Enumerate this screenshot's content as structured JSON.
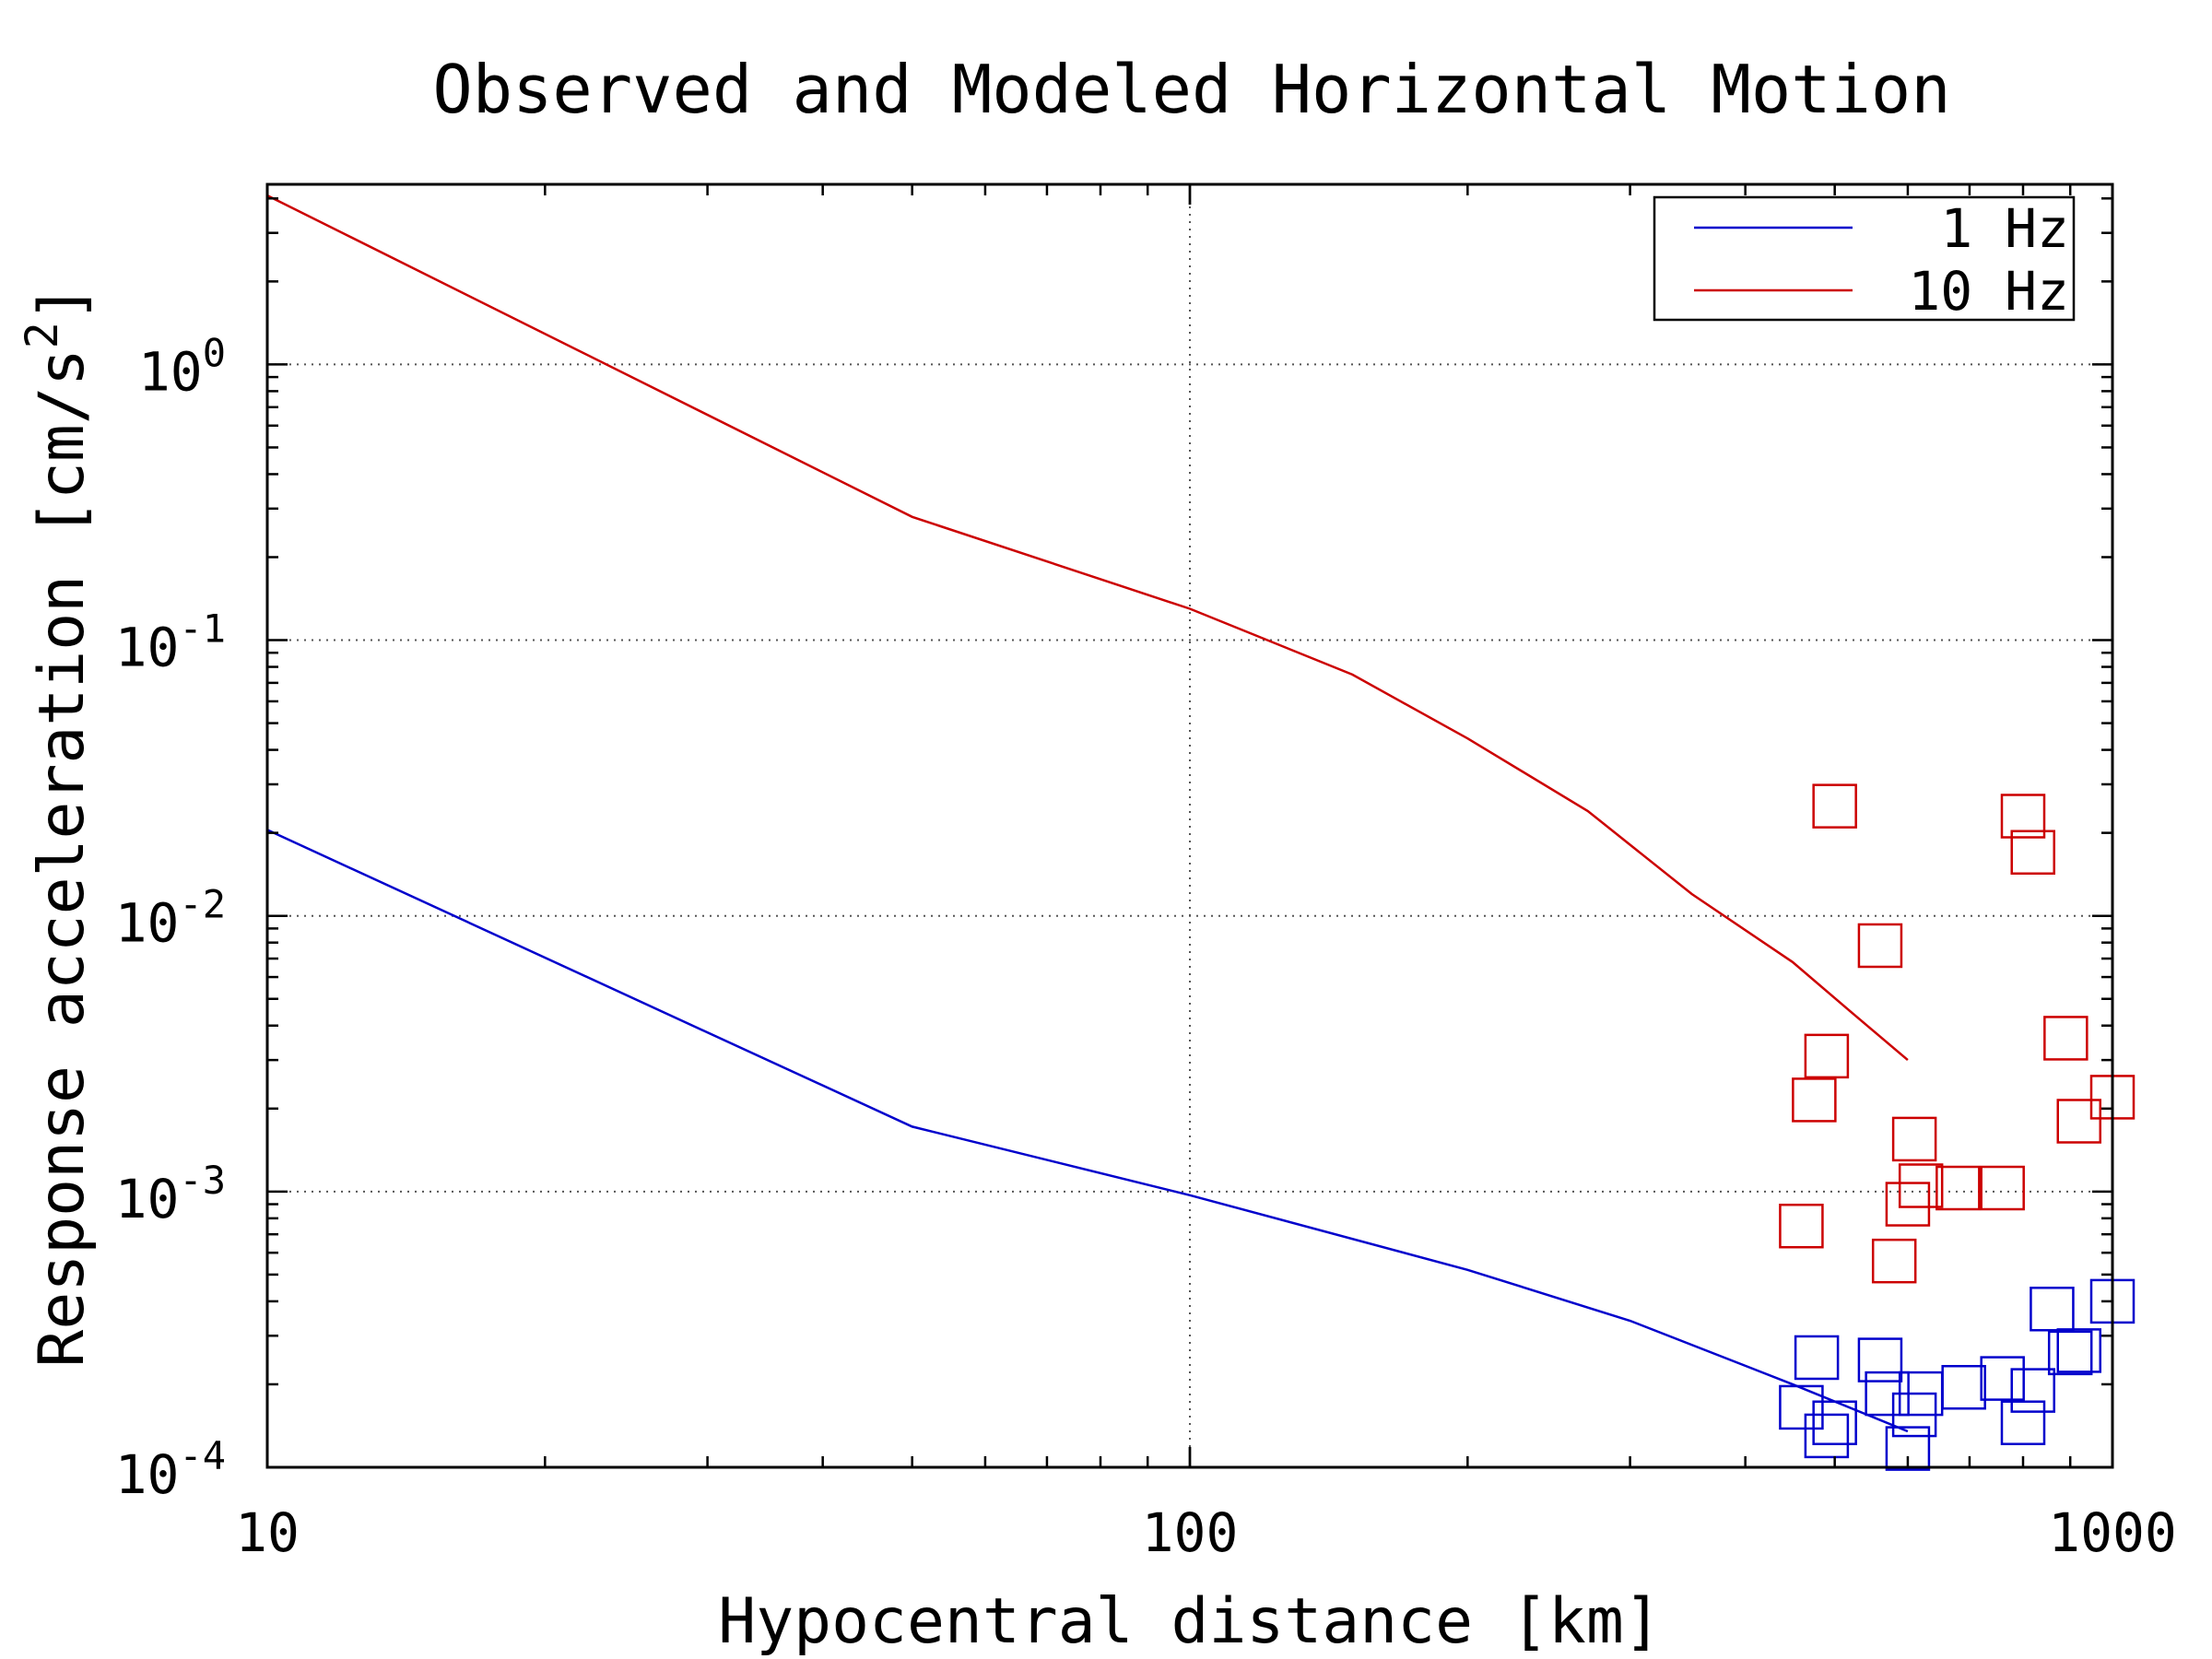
{
  "chart_data": {
    "type": "line",
    "title": "Observed and Modeled Horizontal Motion",
    "xlabel": "Hypocentral distance [km]",
    "ylabel": "Response acceleration [cm/s",
    "ylabel_sup": "2",
    "ylabel_end": "]",
    "xscale": "log",
    "yscale": "log",
    "xlim": [
      10,
      1000
    ],
    "ylim": [
      0.0001,
      4.5
    ],
    "grid": true,
    "legend_position": "top-right",
    "x_ticks": [
      {
        "value": 10,
        "label": "10"
      },
      {
        "value": 100,
        "label": "100"
      },
      {
        "value": 1000,
        "label": "1000"
      }
    ],
    "y_ticks": [
      {
        "value": 1,
        "base": "10",
        "exp": "0"
      },
      {
        "value": 0.1,
        "base": "10",
        "exp": "-1"
      },
      {
        "value": 0.01,
        "base": "10",
        "exp": "-2"
      },
      {
        "value": 0.001,
        "base": "10",
        "exp": "-3"
      },
      {
        "value": 0.0001,
        "base": "10",
        "exp": "-4"
      }
    ],
    "series": [
      {
        "name": "1 Hz",
        "color": "#0000cc",
        "x": [
          10,
          50,
          100,
          200,
          300,
          450,
          600
        ],
        "y": [
          0.0205,
          0.00172,
          0.00097,
          0.00052,
          0.00034,
          0.0002,
          0.000135
        ],
        "observed": {
          "x": [
            460,
            478,
            490,
            500,
            560,
            570,
            600,
            610,
            620,
            690,
            760,
            800,
            820,
            860,
            900,
            920,
            1000
          ],
          "y": [
            0.000165,
            0.00025,
            0.00013,
            0.000145,
            0.000245,
            0.000185,
            0.000117,
            0.000155,
            0.000185,
            0.000195,
            0.00021,
            0.000145,
            0.00019,
            0.000375,
            0.00026,
            0.000265,
            0.0004
          ]
        }
      },
      {
        "name": "10 Hz",
        "color": "#cc0000",
        "x": [
          10,
          50,
          100,
          150,
          200,
          270,
          350,
          450,
          520,
          600
        ],
        "y": [
          4.1,
          0.28,
          0.13,
          0.075,
          0.044,
          0.024,
          0.012,
          0.0068,
          0.0045,
          0.003
        ],
        "observed": {
          "x": [
            460,
            475,
            490,
            500,
            560,
            580,
            600,
            610,
            620,
            680,
            760,
            800,
            820,
            890,
            920,
            1000
          ],
          "y": [
            0.00075,
            0.00215,
            0.0031,
            0.025,
            0.0078,
            0.00056,
            0.0009,
            0.00155,
            0.00105,
            0.00103,
            0.00103,
            0.023,
            0.017,
            0.0036,
            0.0018,
            0.0022
          ]
        }
      }
    ]
  }
}
